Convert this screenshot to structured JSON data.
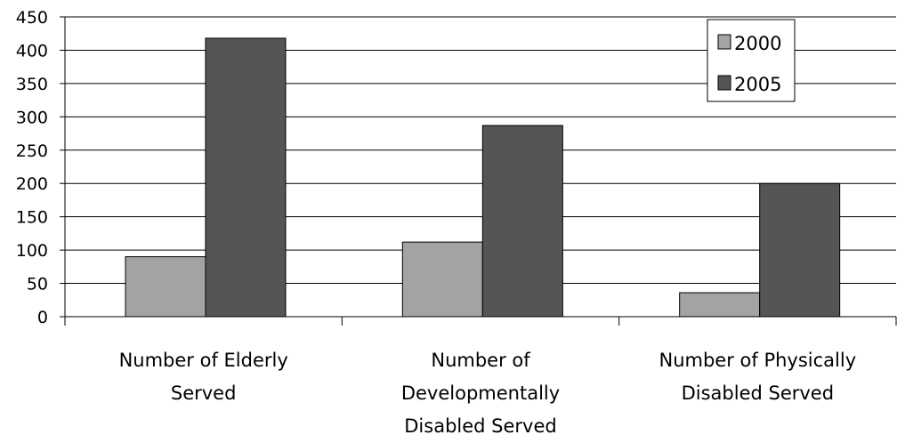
{
  "chart_data": {
    "type": "bar",
    "categories": [
      [
        "Number of Elderly",
        "Served"
      ],
      [
        "Number of",
        "Developmentally",
        "Disabled Served"
      ],
      [
        "Number of Physically",
        "Disabled Served"
      ]
    ],
    "series": [
      {
        "name": "2000",
        "values": [
          90,
          112,
          36
        ],
        "color": "#a3a3a3"
      },
      {
        "name": "2005",
        "values": [
          418,
          287,
          200
        ],
        "color": "#555555"
      }
    ],
    "ylim": [
      0,
      450
    ],
    "yticks": [
      0,
      50,
      100,
      150,
      200,
      250,
      300,
      350,
      400,
      450
    ],
    "grid": true,
    "legend_position": "top-right",
    "title": "",
    "xlabel": "",
    "ylabel": ""
  }
}
